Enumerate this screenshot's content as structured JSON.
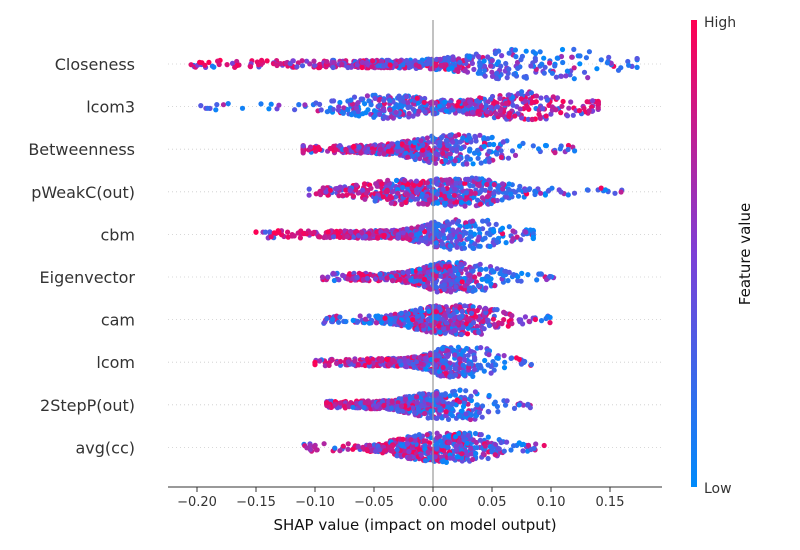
{
  "chart_data": {
    "type": "scatter",
    "subtype": "shap-beeswarm",
    "xlabel": "SHAP value (impact on model output)",
    "xlim": [
      -0.225,
      0.19
    ],
    "xticks": [
      -0.2,
      -0.15,
      -0.1,
      -0.05,
      0.0,
      0.05,
      0.1,
      0.15
    ],
    "xtick_labels": [
      "−0.20",
      "−0.15",
      "−0.10",
      "−0.05",
      "0.00",
      "0.05",
      "0.10",
      "0.15"
    ],
    "colorbar": {
      "label": "Feature value",
      "high_label": "High",
      "low_label": "Low",
      "high_color": "#ff0052",
      "mid_color": "#7d3fd6",
      "low_color": "#008bfb",
      "placement": "right"
    },
    "grid": false,
    "features": [
      {
        "name": "Closeness",
        "min": -0.205,
        "max": 0.173,
        "hi_mean": -0.07,
        "lo_mean": 0.05,
        "peak": [
          0.065,
          0.11
        ]
      },
      {
        "name": "lcom3",
        "min": -0.2,
        "max": 0.14,
        "hi_mean": 0.07,
        "lo_mean": -0.03,
        "peak": [
          -0.04,
          0.08
        ]
      },
      {
        "name": "Betweenness",
        "min": -0.11,
        "max": 0.12,
        "hi_mean": -0.05,
        "lo_mean": 0.01,
        "peak": [
          0.0,
          0.04
        ]
      },
      {
        "name": "pWeakC(out)",
        "min": -0.105,
        "max": 0.16,
        "hi_mean": -0.03,
        "lo_mean": 0.03,
        "peak": [
          -0.03,
          0.03
        ]
      },
      {
        "name": "cbm",
        "min": -0.15,
        "max": 0.085,
        "hi_mean": -0.07,
        "lo_mean": 0.03,
        "peak": [
          0.02,
          0.03
        ]
      },
      {
        "name": "Eigenvector",
        "min": -0.095,
        "max": 0.105,
        "hi_mean": -0.03,
        "lo_mean": 0.02,
        "peak": [
          0.01,
          0.03
        ]
      },
      {
        "name": "cam",
        "min": -0.095,
        "max": 0.1,
        "hi_mean": 0.02,
        "lo_mean": -0.01,
        "peak": [
          0.0,
          0.035
        ]
      },
      {
        "name": "lcom",
        "min": -0.1,
        "max": 0.085,
        "hi_mean": -0.04,
        "lo_mean": 0.02,
        "peak": [
          0.015,
          0.035
        ]
      },
      {
        "name": "2StepP(out)",
        "min": -0.09,
        "max": 0.085,
        "hi_mean": -0.05,
        "lo_mean": 0.01,
        "peak": [
          -0.005,
          0.03
        ]
      },
      {
        "name": "avg(cc)",
        "min": -0.11,
        "max": 0.095,
        "hi_mean": -0.02,
        "lo_mean": 0.02,
        "peak": [
          -0.01,
          0.03
        ]
      }
    ]
  }
}
